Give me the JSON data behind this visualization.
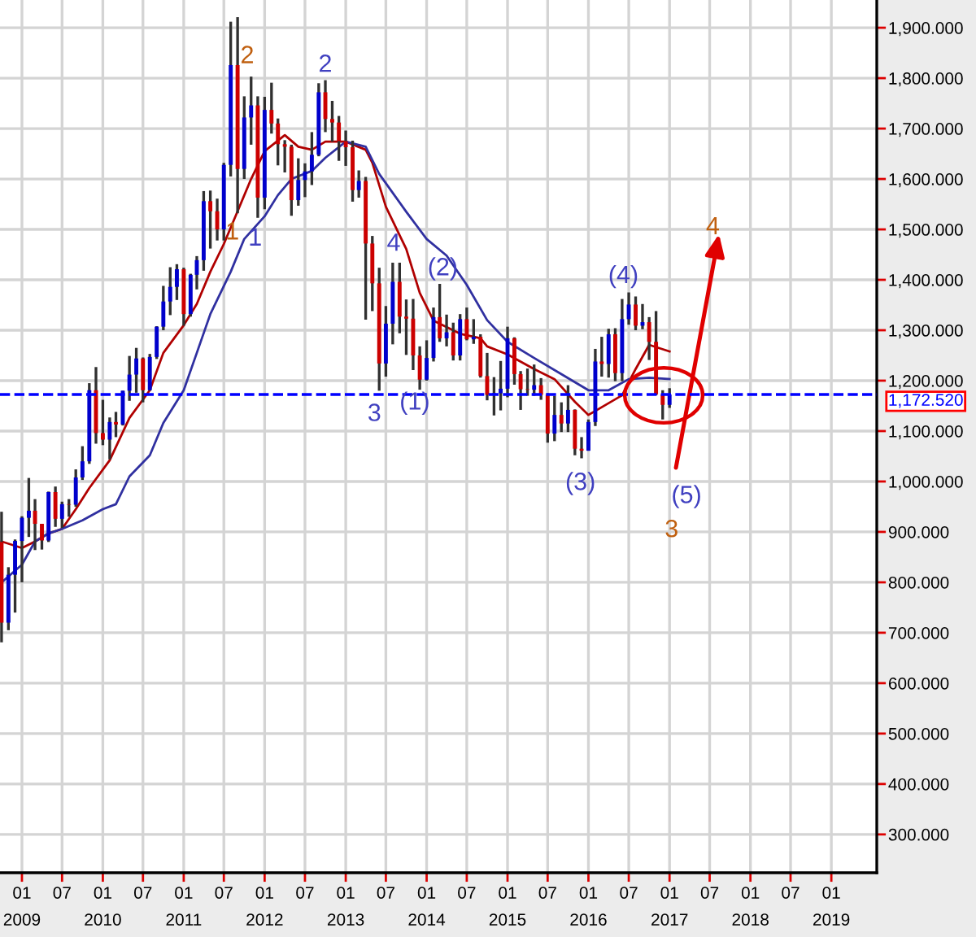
{
  "chart_data": {
    "type": "candlestick",
    "x": [
      "2008-10",
      "2008-11",
      "2008-12",
      "2009-01",
      "2009-02",
      "2009-03",
      "2009-04",
      "2009-05",
      "2009-06",
      "2009-07",
      "2009-08",
      "2009-09",
      "2009-10",
      "2009-11",
      "2009-12",
      "2010-01",
      "2010-02",
      "2010-03",
      "2010-04",
      "2010-05",
      "2010-06",
      "2010-07",
      "2010-08",
      "2010-09",
      "2010-10",
      "2010-11",
      "2010-12",
      "2011-01",
      "2011-02",
      "2011-03",
      "2011-04",
      "2011-05",
      "2011-06",
      "2011-07",
      "2011-08",
      "2011-09",
      "2011-10",
      "2011-11",
      "2011-12",
      "2012-01",
      "2012-02",
      "2012-03",
      "2012-04",
      "2012-05",
      "2012-06",
      "2012-07",
      "2012-08",
      "2012-09",
      "2012-10",
      "2012-11",
      "2012-12",
      "2013-01",
      "2013-02",
      "2013-03",
      "2013-04",
      "2013-05",
      "2013-06",
      "2013-07",
      "2013-08",
      "2013-09",
      "2013-10",
      "2013-11",
      "2013-12",
      "2014-01",
      "2014-02",
      "2014-03",
      "2014-04",
      "2014-05",
      "2014-06",
      "2014-07",
      "2014-08",
      "2014-09",
      "2014-10",
      "2014-11",
      "2014-12",
      "2015-01",
      "2015-02",
      "2015-03",
      "2015-04",
      "2015-05",
      "2015-06",
      "2015-07",
      "2015-08",
      "2015-09",
      "2015-10",
      "2015-11",
      "2015-12",
      "2016-01",
      "2016-02",
      "2016-03",
      "2016-04",
      "2016-05",
      "2016-06",
      "2016-07",
      "2016-08",
      "2016-09",
      "2016-10",
      "2016-11",
      "2016-12",
      "2017-01"
    ],
    "ohlc": [
      [
        880,
        940,
        681,
        720
      ],
      [
        720,
        830,
        705,
        815
      ],
      [
        815,
        885,
        740,
        882
      ],
      [
        882,
        931,
        800,
        928
      ],
      [
        928,
        1007,
        890,
        942
      ],
      [
        942,
        965,
        864,
        916
      ],
      [
        916,
        916,
        865,
        883
      ],
      [
        883,
        980,
        880,
        979
      ],
      [
        979,
        990,
        910,
        926
      ],
      [
        926,
        960,
        908,
        955
      ],
      [
        955,
        965,
        930,
        954
      ],
      [
        954,
        1024,
        950,
        1008
      ],
      [
        1008,
        1070,
        1003,
        1040
      ],
      [
        1040,
        1195,
        1035,
        1181
      ],
      [
        1181,
        1227,
        1075,
        1096
      ],
      [
        1096,
        1162,
        1072,
        1083
      ],
      [
        1083,
        1127,
        1044,
        1118
      ],
      [
        1118,
        1138,
        1088,
        1113
      ],
      [
        1113,
        1180,
        1111,
        1180
      ],
      [
        1180,
        1249,
        1160,
        1212
      ],
      [
        1212,
        1265,
        1176,
        1244
      ],
      [
        1244,
        1246,
        1157,
        1181
      ],
      [
        1181,
        1253,
        1180,
        1247
      ],
      [
        1247,
        1308,
        1243,
        1307
      ],
      [
        1307,
        1388,
        1300,
        1357
      ],
      [
        1357,
        1425,
        1330,
        1386
      ],
      [
        1386,
        1431,
        1360,
        1421
      ],
      [
        1421,
        1424,
        1309,
        1332
      ],
      [
        1332,
        1412,
        1327,
        1410
      ],
      [
        1410,
        1447,
        1381,
        1439
      ],
      [
        1439,
        1576,
        1418,
        1556
      ],
      [
        1556,
        1577,
        1462,
        1536
      ],
      [
        1536,
        1561,
        1478,
        1500
      ],
      [
        1500,
        1632,
        1478,
        1628
      ],
      [
        1628,
        1912,
        1605,
        1826
      ],
      [
        1826,
        1921,
        1532,
        1620
      ],
      [
        1620,
        1764,
        1600,
        1722
      ],
      [
        1722,
        1803,
        1668,
        1746
      ],
      [
        1746,
        1764,
        1523,
        1563
      ],
      [
        1563,
        1763,
        1540,
        1737
      ],
      [
        1737,
        1791,
        1690,
        1710
      ],
      [
        1710,
        1720,
        1627,
        1669
      ],
      [
        1669,
        1677,
        1613,
        1664
      ],
      [
        1664,
        1668,
        1527,
        1558
      ],
      [
        1558,
        1641,
        1547,
        1598
      ],
      [
        1598,
        1631,
        1564,
        1615
      ],
      [
        1615,
        1693,
        1588,
        1648
      ],
      [
        1648,
        1790,
        1645,
        1772
      ],
      [
        1772,
        1796,
        1693,
        1719
      ],
      [
        1719,
        1755,
        1674,
        1712
      ],
      [
        1712,
        1725,
        1636,
        1675
      ],
      [
        1675,
        1696,
        1626,
        1663
      ],
      [
        1663,
        1676,
        1555,
        1578
      ],
      [
        1578,
        1617,
        1563,
        1596
      ],
      [
        1596,
        1604,
        1321,
        1472
      ],
      [
        1472,
        1487,
        1338,
        1393
      ],
      [
        1393,
        1424,
        1180,
        1234
      ],
      [
        1234,
        1348,
        1208,
        1313
      ],
      [
        1313,
        1434,
        1272,
        1396
      ],
      [
        1396,
        1434,
        1294,
        1327
      ],
      [
        1327,
        1361,
        1251,
        1323
      ],
      [
        1323,
        1362,
        1221,
        1250
      ],
      [
        1250,
        1268,
        1182,
        1202
      ],
      [
        1202,
        1280,
        1200,
        1245
      ],
      [
        1245,
        1345,
        1238,
        1326
      ],
      [
        1326,
        1392,
        1277,
        1284
      ],
      [
        1284,
        1331,
        1268,
        1296
      ],
      [
        1296,
        1315,
        1240,
        1250
      ],
      [
        1250,
        1332,
        1240,
        1322
      ],
      [
        1322,
        1345,
        1280,
        1282
      ],
      [
        1282,
        1322,
        1273,
        1287
      ],
      [
        1287,
        1292,
        1206,
        1209
      ],
      [
        1209,
        1255,
        1161,
        1172
      ],
      [
        1172,
        1207,
        1131,
        1175
      ],
      [
        1175,
        1239,
        1141,
        1184
      ],
      [
        1184,
        1307,
        1167,
        1284
      ],
      [
        1284,
        1286,
        1192,
        1213
      ],
      [
        1213,
        1219,
        1142,
        1183
      ],
      [
        1183,
        1224,
        1170,
        1182
      ],
      [
        1182,
        1232,
        1170,
        1191
      ],
      [
        1191,
        1205,
        1162,
        1172
      ],
      [
        1172,
        1175,
        1077,
        1095
      ],
      [
        1095,
        1170,
        1080,
        1132
      ],
      [
        1132,
        1157,
        1098,
        1115
      ],
      [
        1115,
        1191,
        1098,
        1142
      ],
      [
        1142,
        1143,
        1052,
        1065
      ],
      [
        1065,
        1088,
        1046,
        1061
      ],
      [
        1061,
        1123,
        1061,
        1118
      ],
      [
        1118,
        1263,
        1110,
        1238
      ],
      [
        1238,
        1287,
        1208,
        1233
      ],
      [
        1233,
        1303,
        1206,
        1292
      ],
      [
        1292,
        1304,
        1199,
        1215
      ],
      [
        1215,
        1362,
        1199,
        1322
      ],
      [
        1322,
        1375,
        1311,
        1351
      ],
      [
        1351,
        1367,
        1300,
        1309
      ],
      [
        1309,
        1352,
        1302,
        1316
      ],
      [
        1316,
        1326,
        1241,
        1277
      ],
      [
        1277,
        1338,
        1171,
        1173
      ],
      [
        1173,
        1181,
        1123,
        1152
      ],
      [
        1152,
        1185,
        1146,
        1172.52
      ]
    ],
    "colors": [
      "#cc0000",
      "#0000cc",
      "#0000cc",
      "#0000cc",
      "#0000cc",
      "#cc0000",
      "#cc0000",
      "#0000cc",
      "#cc0000",
      "#0000cc",
      "#cc0000",
      "#0000cc",
      "#0000cc",
      "#0000cc",
      "#cc0000",
      "#cc0000",
      "#0000cc",
      "#cc0000",
      "#0000cc",
      "#0000cc",
      "#0000cc",
      "#cc0000",
      "#0000cc",
      "#0000cc",
      "#0000cc",
      "#0000cc",
      "#0000cc",
      "#cc0000",
      "#0000cc",
      "#0000cc",
      "#0000cc",
      "#cc0000",
      "#cc0000",
      "#0000cc",
      "#0000cc",
      "#cc0000",
      "#0000cc",
      "#0000cc",
      "#cc0000",
      "#0000cc",
      "#cc0000",
      "#cc0000",
      "#cc0000",
      "#cc0000",
      "#0000cc",
      "#0000cc",
      "#0000cc",
      "#0000cc",
      "#cc0000",
      "#cc0000",
      "#cc0000",
      "#cc0000",
      "#cc0000",
      "#0000cc",
      "#cc0000",
      "#cc0000",
      "#cc0000",
      "#0000cc",
      "#0000cc",
      "#cc0000",
      "#cc0000",
      "#cc0000",
      "#cc0000",
      "#0000cc",
      "#0000cc",
      "#cc0000",
      "#0000cc",
      "#cc0000",
      "#0000cc",
      "#cc0000",
      "#0000cc",
      "#cc0000",
      "#cc0000",
      "#0000cc",
      "#0000cc",
      "#0000cc",
      "#cc0000",
      "#cc0000",
      "#cc0000",
      "#0000cc",
      "#cc0000",
      "#cc0000",
      "#0000cc",
      "#cc0000",
      "#0000cc",
      "#cc0000",
      "#cc0000",
      "#0000cc",
      "#0000cc",
      "#cc0000",
      "#0000cc",
      "#cc0000",
      "#0000cc",
      "#0000cc",
      "#cc0000",
      "#0000cc",
      "#cc0000",
      "#cc0000",
      "#cc0000",
      "#0000cc"
    ],
    "series": [
      {
        "type": "line",
        "color": "#b00000",
        "x": [
          "2008-10",
          "2009-01",
          "2009-03",
          "2009-05",
          "2009-07",
          "2009-09",
          "2009-11",
          "2010-02",
          "2010-05",
          "2010-08",
          "2010-10",
          "2011-01",
          "2011-03",
          "2011-05",
          "2011-07",
          "2011-09",
          "2011-11",
          "2012-01",
          "2012-04",
          "2012-06",
          "2012-08",
          "2012-10",
          "2013-01",
          "2013-04",
          "2013-05",
          "2013-07",
          "2013-10",
          "2013-12",
          "2014-02",
          "2014-06",
          "2014-09",
          "2014-10",
          "2015-01",
          "2015-05",
          "2015-08",
          "2015-11",
          "2016-01",
          "2016-06",
          "2016-08",
          "2016-10",
          "2017-01"
        ],
        "values": [
          881,
          868,
          881,
          897,
          906,
          945,
          987,
          1042,
          1126,
          1181,
          1255,
          1310,
          1352,
          1416,
          1471,
          1536,
          1600,
          1655,
          1687,
          1664,
          1658,
          1674,
          1674,
          1658,
          1632,
          1545,
          1461,
          1374,
          1319,
          1293,
          1284,
          1268,
          1252,
          1223,
          1203,
          1158,
          1132,
          1171,
          1223,
          1271,
          1258
        ]
      },
      {
        "type": "line",
        "color": "#3030a0",
        "x": [
          "2008-10",
          "2009-01",
          "2009-03",
          "2009-05",
          "2009-07",
          "2009-10",
          "2010-01",
          "2010-03",
          "2010-05",
          "2010-08",
          "2010-10",
          "2011-01",
          "2011-03",
          "2011-05",
          "2011-08",
          "2011-10",
          "2012-01",
          "2012-03",
          "2012-05",
          "2012-08",
          "2012-10",
          "2013-01",
          "2013-04",
          "2013-06",
          "2013-10",
          "2014-01",
          "2014-04",
          "2014-07",
          "2014-10",
          "2015-01",
          "2015-05",
          "2015-09",
          "2016-01",
          "2016-04",
          "2016-07",
          "2016-10",
          "2017-01"
        ],
        "values": [
          800,
          835,
          881,
          897,
          906,
          923,
          945,
          955,
          1010,
          1052,
          1116,
          1181,
          1255,
          1332,
          1416,
          1481,
          1526,
          1568,
          1600,
          1616,
          1642,
          1674,
          1664,
          1610,
          1535,
          1481,
          1448,
          1390,
          1320,
          1277,
          1245,
          1213,
          1181,
          1181,
          1203,
          1206,
          1203
        ]
      }
    ],
    "ref_lines": [
      {
        "axis": "y",
        "value": 1172.52,
        "label": "1,172.520",
        "color": "#0000ff",
        "line_style": "dashed"
      }
    ],
    "annotations": [
      "2",
      "1",
      "1",
      "2",
      "4",
      "3",
      "(1)",
      "(2)",
      "(3)",
      "(4)",
      "(5)",
      "3",
      "4"
    ],
    "xlim": [
      "2008-09-24",
      "2019-07-25"
    ],
    "ylim": [
      224,
      1955
    ],
    "xticks": [
      {
        "value": "2009-01",
        "label": "01\n2009"
      },
      {
        "value": "2009-07",
        "label": "07"
      },
      {
        "value": "2010-01",
        "label": "01\n2010"
      },
      {
        "value": "2010-07",
        "label": "07"
      },
      {
        "value": "2011-01",
        "label": "01\n2011"
      },
      {
        "value": "2011-07",
        "label": "07"
      },
      {
        "value": "2012-01",
        "label": "01\n2012"
      },
      {
        "value": "2012-07",
        "label": "07"
      },
      {
        "value": "2013-01",
        "label": "01\n2013"
      },
      {
        "value": "2013-07",
        "label": "07"
      },
      {
        "value": "2014-01",
        "label": "01\n2014"
      },
      {
        "value": "2014-07",
        "label": "07"
      },
      {
        "value": "2015-01",
        "label": "01\n2015"
      },
      {
        "value": "2015-07",
        "label": "07"
      },
      {
        "value": "2016-01",
        "label": "01\n2016"
      },
      {
        "value": "2016-07",
        "label": "07"
      },
      {
        "value": "2017-01",
        "label": "01\n2017"
      },
      {
        "value": "2017-07",
        "label": "07"
      },
      {
        "value": "2018-01",
        "label": "01\n2018"
      },
      {
        "value": "2018-07",
        "label": "07"
      },
      {
        "value": "2019-01",
        "label": "01\n2019"
      }
    ],
    "yticks": [
      {
        "value": 300,
        "label": "300.000"
      },
      {
        "value": 400,
        "label": "400.000"
      },
      {
        "value": 500,
        "label": "500.000"
      },
      {
        "value": 600,
        "label": "600.000"
      },
      {
        "value": 700,
        "label": "700.000"
      },
      {
        "value": 800,
        "label": "800.000"
      },
      {
        "value": 900,
        "label": "900.000"
      },
      {
        "value": 1000,
        "label": "1,000.000"
      },
      {
        "value": 1100,
        "label": "1,100.000"
      },
      {
        "value": 1200,
        "label": "1,200.000"
      },
      {
        "value": 1300,
        "label": "1,300.000"
      },
      {
        "value": 1400,
        "label": "1,400.000"
      },
      {
        "value": 1500,
        "label": "1,500.000"
      },
      {
        "value": 1600,
        "label": "1,600.000"
      },
      {
        "value": 1700,
        "label": "1,700.000"
      },
      {
        "value": 1800,
        "label": "1,800.000"
      },
      {
        "value": 1900,
        "label": "1,900.000"
      }
    ],
    "grid": true
  }
}
